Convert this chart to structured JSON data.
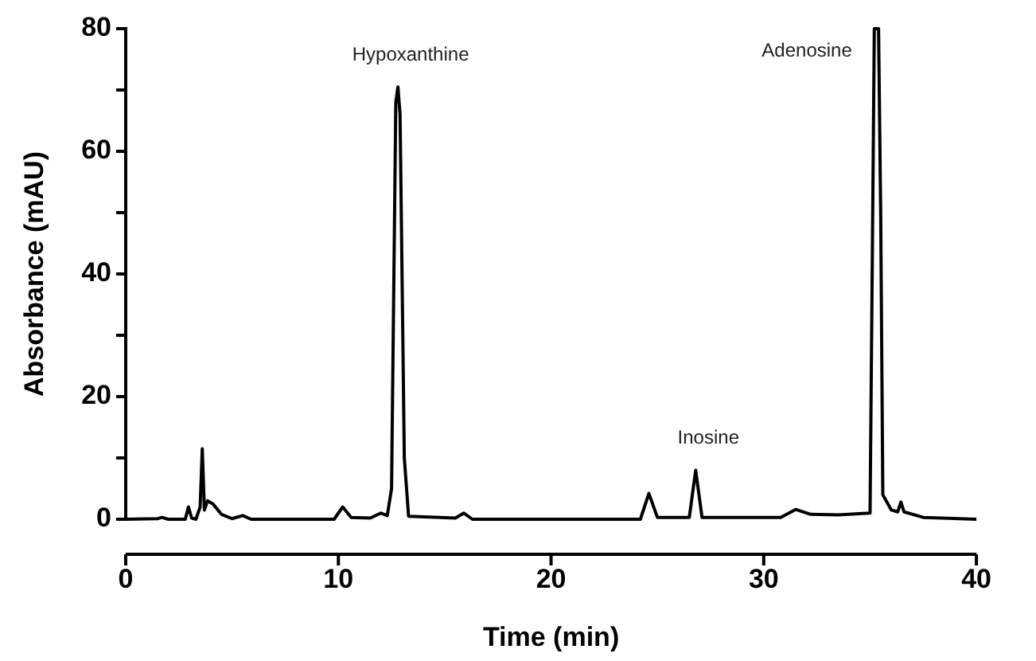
{
  "chart_data": {
    "type": "line",
    "xlabel": "Time (min)",
    "ylabel": "Absorbance (mAU)",
    "x": [
      0,
      1.5,
      1.7,
      2.0,
      2.8,
      2.95,
      3.1,
      3.3,
      3.5,
      3.6,
      3.7,
      3.85,
      4.1,
      4.5,
      5.0,
      5.5,
      5.9,
      9.8,
      10.2,
      10.6,
      11.5,
      12.0,
      12.3,
      12.5,
      12.7,
      12.8,
      12.9,
      13.1,
      13.3,
      15.5,
      15.9,
      16.3,
      24.2,
      24.6,
      25.0,
      26.5,
      26.8,
      27.1,
      30.8,
      31.5,
      32.2,
      33.5,
      35.0,
      35.1,
      35.2,
      35.4,
      35.5,
      35.6,
      36.0,
      36.3,
      36.45,
      36.6,
      37.5,
      40
    ],
    "series": [
      {
        "color": "#000000",
        "values": [
          0,
          0.1,
          0.3,
          0,
          0,
          2,
          0.2,
          0,
          2,
          11.5,
          1.5,
          3,
          2.5,
          0.8,
          0.1,
          0.6,
          0,
          0,
          2,
          0.3,
          0.2,
          1,
          0.6,
          5,
          68,
          70.5,
          66,
          10,
          0.5,
          0.2,
          1,
          0,
          0,
          4.2,
          0.3,
          0.3,
          8,
          0.3,
          0.3,
          1.6,
          0.8,
          0.7,
          1,
          40,
          80,
          80,
          50,
          4,
          1.5,
          1.2,
          2.8,
          1.2,
          0.3,
          0
        ]
      }
    ],
    "xlim": [
      0,
      40
    ],
    "xticks": [
      0,
      10,
      20,
      30,
      40
    ],
    "ylim": [
      0,
      80
    ],
    "yticks": [
      0,
      {
        "value": 10,
        "label": null
      },
      20,
      {
        "value": 30,
        "label": null
      },
      40,
      {
        "value": 50,
        "label": null
      },
      60,
      {
        "value": 70,
        "label": null
      },
      80
    ],
    "grid": false,
    "legend": false,
    "marker": "none",
    "line_style": "solid",
    "annotations": [
      {
        "text": "Hypoxanthine",
        "x": 12.8,
        "y": 70.5
      },
      {
        "text": "Inosine",
        "x": 26.8,
        "y": 8
      },
      {
        "text": "Adenosine",
        "x": 35.2,
        "y": 80
      }
    ]
  }
}
